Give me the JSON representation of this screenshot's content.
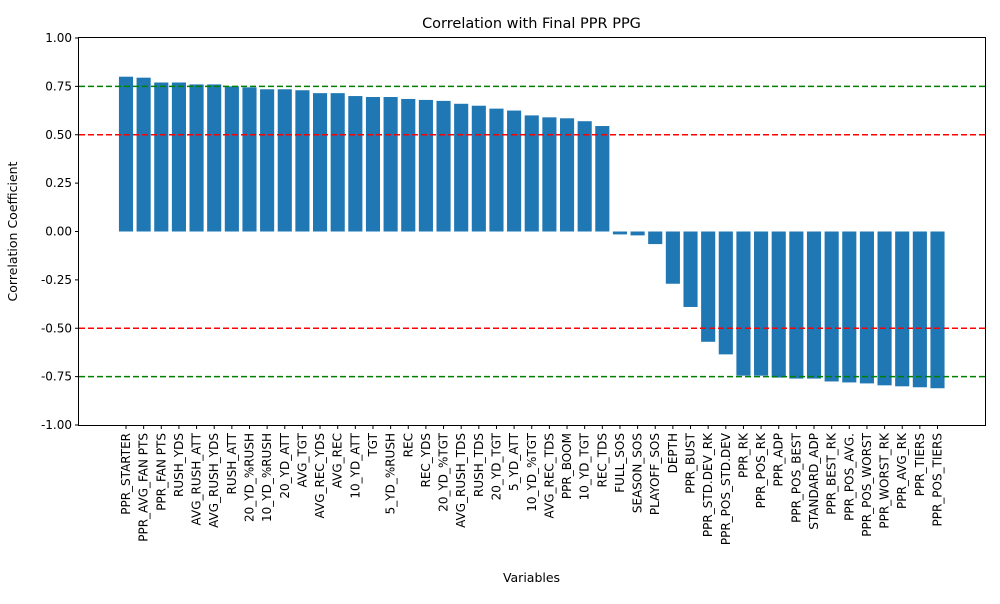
{
  "chart_data": {
    "type": "bar",
    "title": "Correlation with Final PPR PPG",
    "xlabel": "Variables",
    "ylabel": "Correlation Coefficient",
    "ylim": [
      -1.0,
      1.0
    ],
    "yticks": [
      "-1.00",
      "-0.75",
      "-0.50",
      "-0.25",
      "0.00",
      "0.25",
      "0.50",
      "0.75",
      "1.00"
    ],
    "ytick_values": [
      -1.0,
      -0.75,
      -0.5,
      -0.25,
      0.0,
      0.25,
      0.5,
      0.75,
      1.0
    ],
    "grid": false,
    "bar_color": "#1f77b4",
    "reference_lines": [
      {
        "value": 0.75,
        "color": "#008000",
        "style": "dashed"
      },
      {
        "value": 0.5,
        "color": "#ff0000",
        "style": "dashed"
      },
      {
        "value": -0.5,
        "color": "#ff0000",
        "style": "dashed"
      },
      {
        "value": -0.75,
        "color": "#008000",
        "style": "dashed"
      }
    ],
    "categories": [
      "PPR_STARTER",
      "PPR_AVG_FAN PTS",
      "PPR_FAN PTS",
      "RUSH_YDS",
      "AVG_RUSH_ATT",
      "AVG_RUSH_YDS",
      "RUSH_ATT",
      "20_YD_%RUSH",
      "10_YD_%RUSH",
      "20_YD_ATT",
      "AVG_TGT",
      "AVG_REC_YDS",
      "AVG_REC",
      "10_YD_ATT",
      "TGT",
      "5_YD_%RUSH",
      "REC",
      "REC_YDS",
      "20_YD_%TGT",
      "AVG_RUSH_TDS",
      "RUSH_TDS",
      "20_YD_TGT",
      "5_YD_ATT",
      "10_YD_%TGT",
      "AVG_REC_TDS",
      "PPR_BOOM",
      "10_YD_TGT",
      "REC_TDS",
      "FULL_SOS",
      "SEASON_SOS",
      "PLAYOFF_SOS",
      "DEPTH",
      "PPR_BUST",
      "PPR_STD.DEV_RK",
      "PPR_POS_STD.DEV",
      "PPR_RK",
      "PPR_POS_RK",
      "PPR_ADP",
      "PPR_POS_BEST",
      "STANDARD_ADP",
      "PPR_BEST_RK",
      "PPR_POS_AVG.",
      "PPR_POS_WORST",
      "PPR_WORST_RK",
      "PPR_AVG_RK",
      "PPR_TIERS",
      "PPR_POS_TIERS"
    ],
    "values": [
      0.8,
      0.795,
      0.77,
      0.77,
      0.76,
      0.76,
      0.75,
      0.745,
      0.735,
      0.735,
      0.73,
      0.715,
      0.715,
      0.7,
      0.695,
      0.695,
      0.685,
      0.68,
      0.675,
      0.66,
      0.65,
      0.635,
      0.625,
      0.6,
      0.59,
      0.585,
      0.57,
      0.545,
      -0.015,
      -0.02,
      -0.065,
      -0.27,
      -0.39,
      -0.57,
      -0.635,
      -0.745,
      -0.745,
      -0.755,
      -0.76,
      -0.76,
      -0.775,
      -0.78,
      -0.785,
      -0.795,
      -0.8,
      -0.805,
      -0.81
    ]
  }
}
